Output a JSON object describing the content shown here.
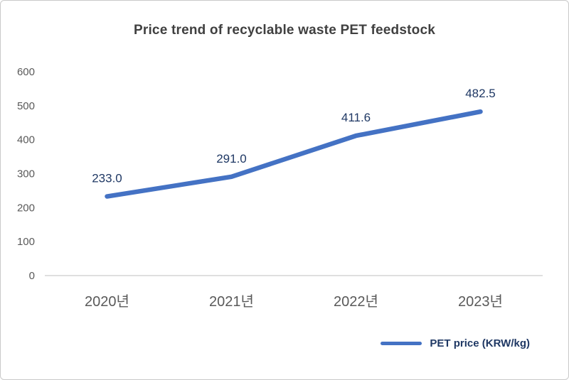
{
  "chart_data": {
    "type": "line",
    "title": "Price trend of recyclable waste PET feedstock",
    "categories": [
      "2020년",
      "2021년",
      "2022년",
      "2023년"
    ],
    "series": [
      {
        "name": "PET price (KRW/kg)",
        "values": [
          233.0,
          291.0,
          411.6,
          482.5
        ],
        "color": "#4472C4"
      }
    ],
    "data_labels": [
      "233.0",
      "291.0",
      "411.6",
      "482.5"
    ],
    "xlabel": "",
    "ylabel": "",
    "ylim": [
      0,
      600
    ],
    "yticks": [
      0,
      100,
      200,
      300,
      400,
      500,
      600
    ],
    "grid": false,
    "legend_position": "bottom-right",
    "colors": {
      "title": "#404040",
      "axis_tick_labels": "#595959",
      "data_labels": "#1F3864",
      "line": "#4472C4",
      "axis_line": "#BFBFBF",
      "legend_text": "#1F3864",
      "background": "#FFFFFF",
      "border": "#C9C9C9"
    }
  }
}
